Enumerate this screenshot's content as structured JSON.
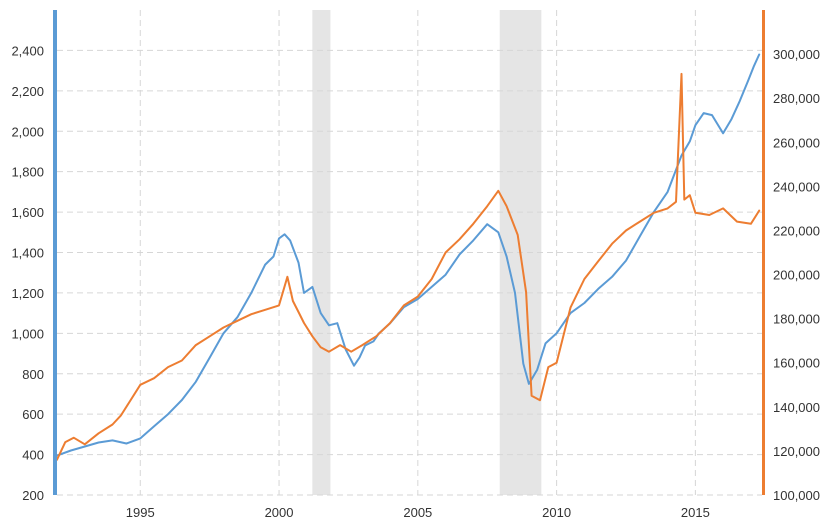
{
  "chart_data": {
    "type": "line",
    "title": "",
    "xlabel": "",
    "ylabel_left": "",
    "ylabel_right": "",
    "grid": true,
    "legend": "none",
    "x_ticks": [
      "1995",
      "2000",
      "2005",
      "2010",
      "2015"
    ],
    "x_tick_values": [
      1995,
      2000,
      2005,
      2010,
      2015
    ],
    "xlim": [
      1992,
      2017.4
    ],
    "y_left": {
      "lim": [
        200,
        2600
      ],
      "ticks": [
        200,
        400,
        600,
        800,
        1000,
        1200,
        1400,
        1600,
        1800,
        2000,
        2200,
        2400
      ],
      "tick_labels": [
        "200",
        "400",
        "600",
        "800",
        "1,000",
        "1,200",
        "1,400",
        "1,600",
        "1,800",
        "2,000",
        "2,200",
        "2,400"
      ]
    },
    "y_right": {
      "lim": [
        100000,
        320000
      ],
      "ticks": [
        100000,
        120000,
        140000,
        160000,
        180000,
        200000,
        220000,
        240000,
        260000,
        280000,
        300000
      ],
      "tick_labels": [
        "100,000",
        "120,000",
        "140,000",
        "160,000",
        "180,000",
        "200,000",
        "220,000",
        "240,000",
        "260,000",
        "280,000",
        "300,000"
      ]
    },
    "recession_bands": [
      [
        2001.2,
        2001.85
      ],
      [
        2007.95,
        2009.45
      ]
    ],
    "series": [
      {
        "axis": "left",
        "color": "#5b9bd5",
        "x": [
          1992.0,
          1992.5,
          1993.0,
          1993.5,
          1994.0,
          1994.5,
          1995.0,
          1995.5,
          1996.0,
          1996.5,
          1997.0,
          1997.5,
          1998.0,
          1998.5,
          1999.0,
          1999.5,
          1999.8,
          2000.0,
          2000.2,
          2000.4,
          2000.7,
          2000.9,
          2001.2,
          2001.5,
          2001.8,
          2002.1,
          2002.4,
          2002.7,
          2002.9,
          2003.1,
          2003.4,
          2003.6,
          2004.0,
          2004.5,
          2005.0,
          2005.5,
          2006.0,
          2006.5,
          2007.0,
          2007.5,
          2007.9,
          2008.2,
          2008.5,
          2008.8,
          2009.0,
          2009.3,
          2009.6,
          2010.0,
          2010.5,
          2011.0,
          2011.5,
          2012.0,
          2012.5,
          2013.0,
          2013.5,
          2014.0,
          2014.5,
          2014.8,
          2015.0,
          2015.3,
          2015.6,
          2016.0,
          2016.3,
          2016.6,
          2016.9,
          2017.1,
          2017.3
        ],
        "y": [
          395,
          420,
          440,
          460,
          470,
          455,
          480,
          540,
          600,
          670,
          760,
          880,
          1000,
          1080,
          1200,
          1340,
          1380,
          1470,
          1490,
          1460,
          1350,
          1200,
          1230,
          1100,
          1040,
          1050,
          920,
          840,
          880,
          940,
          960,
          1000,
          1050,
          1130,
          1170,
          1230,
          1290,
          1390,
          1460,
          1540,
          1500,
          1380,
          1200,
          850,
          750,
          820,
          950,
          1000,
          1100,
          1150,
          1220,
          1280,
          1360,
          1480,
          1600,
          1700,
          1880,
          1950,
          2030,
          2090,
          2080,
          1990,
          2060,
          2150,
          2250,
          2320,
          2380
        ]
      },
      {
        "axis": "right",
        "color": "#ed7d31",
        "x": [
          1992.0,
          1992.3,
          1992.6,
          1993.0,
          1993.5,
          1994.0,
          1994.3,
          1994.6,
          1995.0,
          1995.5,
          1996.0,
          1996.5,
          1997.0,
          1997.5,
          1998.0,
          1998.5,
          1999.0,
          1999.5,
          2000.0,
          2000.3,
          2000.5,
          2000.7,
          2000.9,
          2001.2,
          2001.5,
          2001.8,
          2002.2,
          2002.6,
          2003.0,
          2003.5,
          2004.0,
          2004.5,
          2005.0,
          2005.5,
          2006.0,
          2006.5,
          2007.0,
          2007.5,
          2007.9,
          2008.2,
          2008.6,
          2008.9,
          2009.1,
          2009.4,
          2009.7,
          2010.0,
          2010.5,
          2011.0,
          2011.5,
          2012.0,
          2012.5,
          2013.0,
          2013.5,
          2014.0,
          2014.3,
          2014.5,
          2014.6,
          2014.8,
          2015.0,
          2015.5,
          2016.0,
          2016.5,
          2017.0,
          2017.3
        ],
        "y": [
          116000,
          124000,
          126000,
          123000,
          128000,
          132000,
          136000,
          142000,
          150000,
          153000,
          158000,
          161000,
          168000,
          172000,
          176000,
          179000,
          182000,
          184000,
          186000,
          199000,
          188000,
          183000,
          178000,
          172000,
          167000,
          165000,
          168000,
          165000,
          168000,
          172000,
          178000,
          186000,
          190000,
          198000,
          210000,
          216000,
          223000,
          231000,
          238000,
          231000,
          218000,
          192000,
          145000,
          143000,
          158000,
          160000,
          185000,
          198000,
          206000,
          214000,
          220000,
          224000,
          228000,
          230000,
          233000,
          291000,
          234000,
          236000,
          228000,
          227000,
          230000,
          224000,
          223000,
          229000
        ]
      }
    ]
  }
}
